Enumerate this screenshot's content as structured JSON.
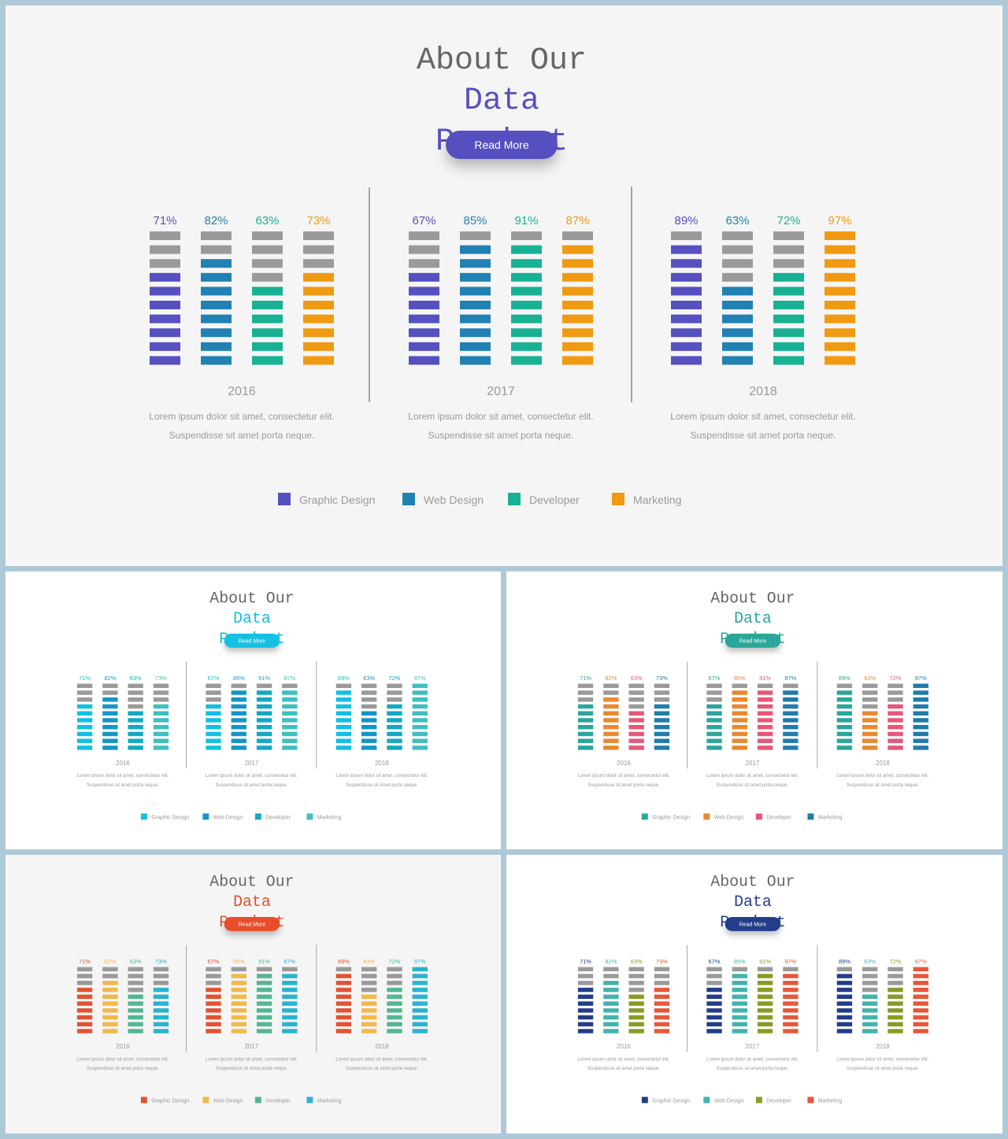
{
  "title_line1": "About Our",
  "title_line2": "Data",
  "title_line3": "Product",
  "button_label": "Read More",
  "description_line1": "Lorem  ipsum dolor sit amet, consectetur elit.",
  "description_line2": "Suspendisse sit amet porta neque.",
  "colors": {
    "inactive_segment": "#9a9a9a",
    "title_gray": "#666666",
    "text_gray": "#9a9a9a",
    "divider": "#7a7a7a",
    "shadow": "rgba(0,0,0,0.25)"
  },
  "chart_data": {
    "type": "bar",
    "segments_per_bar": 10,
    "categories": [
      "2016",
      "2017",
      "2018"
    ],
    "series": [
      {
        "name": "Graphic Design",
        "values": [
          71,
          67,
          89
        ]
      },
      {
        "name": "Web Design",
        "values": [
          82,
          85,
          63
        ]
      },
      {
        "name": "Developer",
        "values": [
          63,
          91,
          72
        ]
      },
      {
        "name": "Marketing",
        "values": [
          73,
          87,
          97
        ]
      }
    ],
    "value_labels": [
      [
        "71%",
        "82%",
        "63%",
        "73%"
      ],
      [
        "67%",
        "85%",
        "91%",
        "87%"
      ],
      [
        "89%",
        "63%",
        "72%",
        "97%"
      ]
    ],
    "ylim": [
      0,
      100
    ]
  },
  "variants": [
    {
      "id": "main",
      "accent": "#5750c0",
      "series_colors": [
        "#5750c0",
        "#2181b2",
        "#19b194",
        "#f09a12"
      ],
      "bg": "#f5f5f5"
    },
    {
      "id": "cyan",
      "accent": "#12c0e1",
      "series_colors": [
        "#12c0e1",
        "#1495c8",
        "#13a9c2",
        "#40bec0"
      ],
      "bg": "#ffffff"
    },
    {
      "id": "teal",
      "accent": "#2aa79a",
      "series_colors": [
        "#2aa79a",
        "#e8892f",
        "#e5587a",
        "#1f7cac"
      ],
      "bg": "#ffffff"
    },
    {
      "id": "red",
      "accent": "#e84d2c",
      "series_colors": [
        "#e05433",
        "#f2b84b",
        "#53b792",
        "#2bb3cf"
      ],
      "bg": "#f5f5f5"
    },
    {
      "id": "navy",
      "accent": "#233d8a",
      "series_colors": [
        "#233d8a",
        "#43b3ab",
        "#8a9a24",
        "#e5583a"
      ],
      "bg": "#ffffff"
    }
  ]
}
